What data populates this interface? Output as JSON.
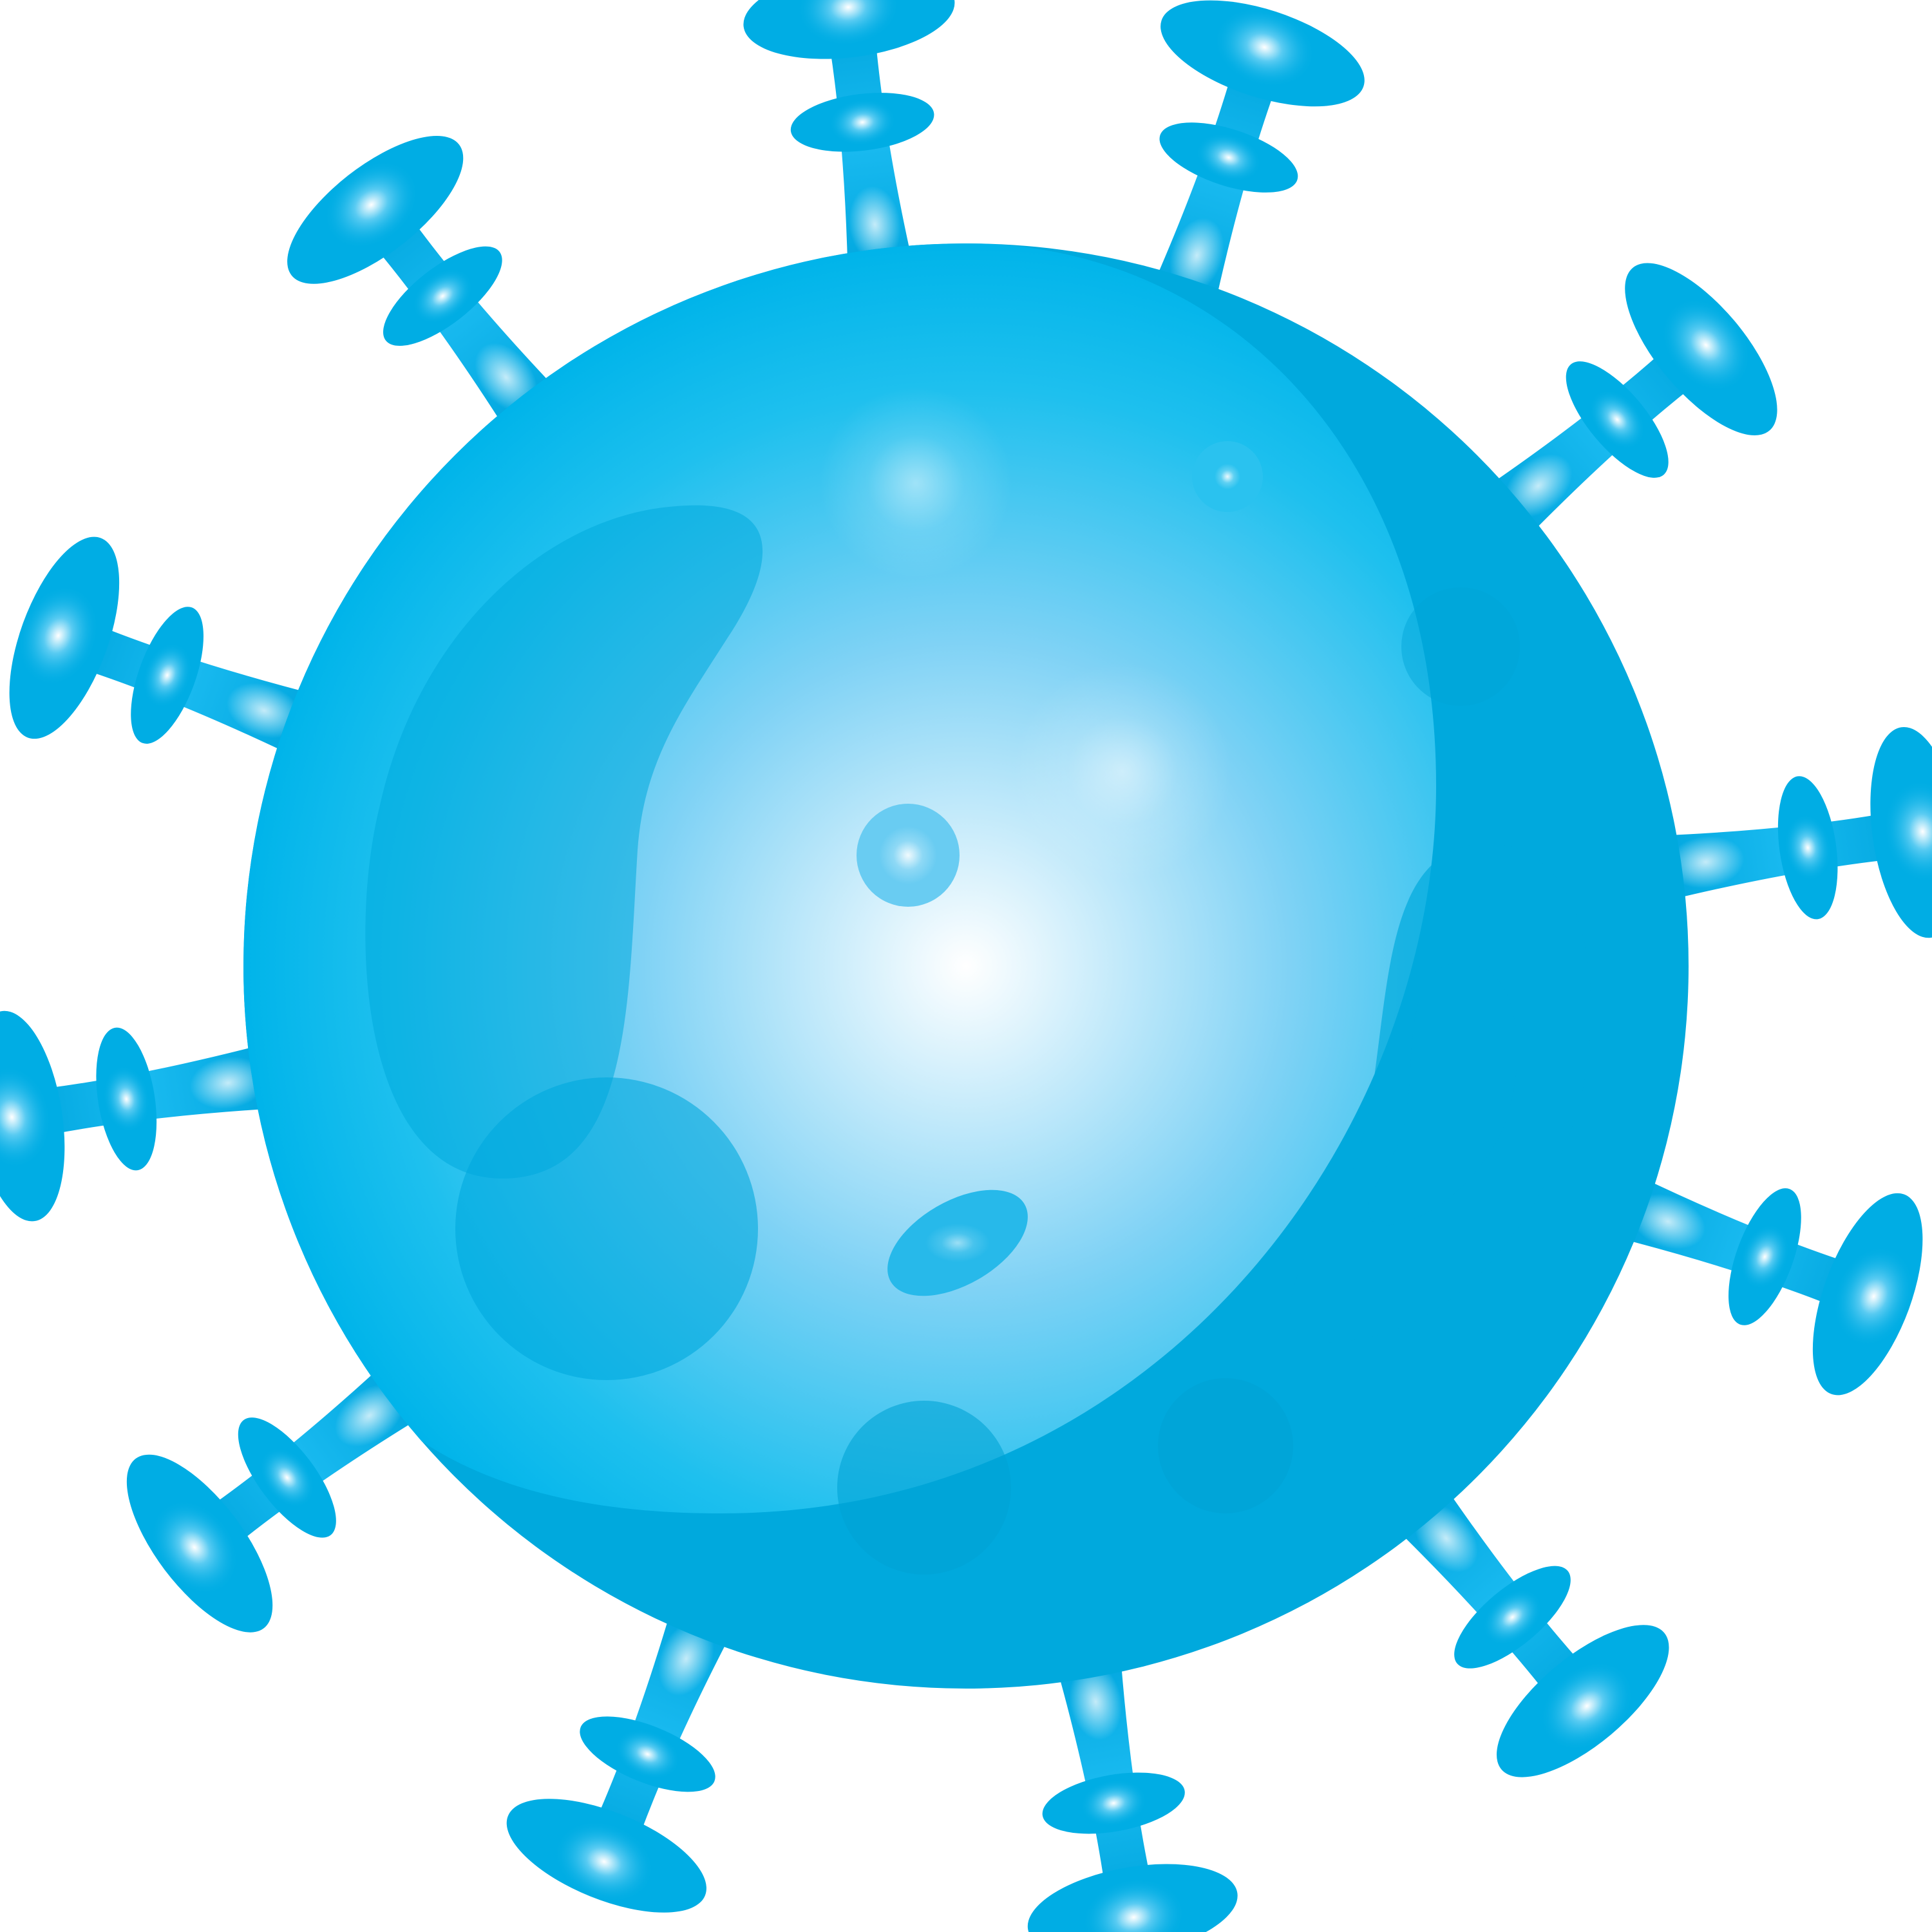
{
  "illustration": {
    "subject": "virus-particle",
    "spike_count": 12,
    "colors": {
      "body_light": "#00b4ea",
      "body_dark": "#00a9dd",
      "highlight": "#ffffff",
      "spike": "#00ade4",
      "background": "#ffffff"
    }
  }
}
